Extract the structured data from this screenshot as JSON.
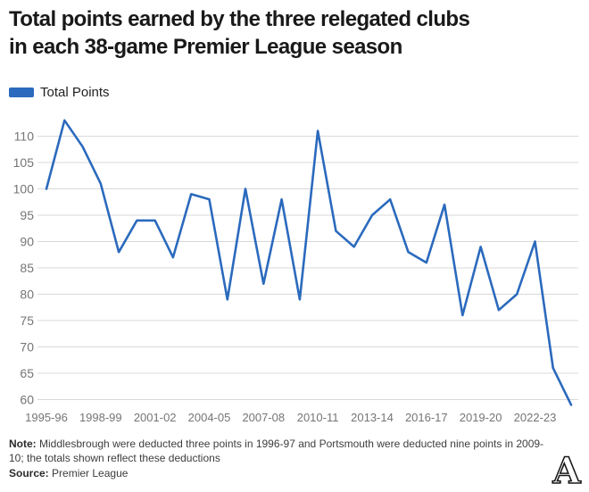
{
  "header": {
    "title_line1": "Total points earned by the three relegated clubs",
    "title_line2": "in each 38-game Premier League season"
  },
  "legend": {
    "label": "Total Points"
  },
  "colors": {
    "accent": "#2b6abd",
    "grid": "#d8d8d8",
    "tick": "#757575",
    "title": "#191919"
  },
  "chart_data": {
    "type": "line",
    "title": "Total points earned by the three relegated clubs in each 38-game Premier League season",
    "legend": [
      "Total Points"
    ],
    "legend_position": "top-left",
    "grid": "horizontal",
    "x": [
      "1995-96",
      "1996-97",
      "1997-98",
      "1998-99",
      "1999-00",
      "2000-01",
      "2001-02",
      "2002-03",
      "2003-04",
      "2004-05",
      "2005-06",
      "2006-07",
      "2007-08",
      "2008-09",
      "2009-10",
      "2010-11",
      "2011-12",
      "2012-13",
      "2013-14",
      "2014-15",
      "2015-16",
      "2016-17",
      "2017-18",
      "2018-19",
      "2019-20",
      "2020-21",
      "2021-22",
      "2022-23",
      "2023-24",
      "2024-25"
    ],
    "values": [
      100,
      113,
      108,
      101,
      88,
      94,
      94,
      87,
      99,
      98,
      79,
      100,
      82,
      98,
      79,
      111,
      92,
      89,
      95,
      98,
      88,
      86,
      97,
      76,
      89,
      77,
      80,
      90,
      66,
      59
    ],
    "ylim": [
      60,
      115
    ],
    "yticks": [
      60,
      65,
      70,
      75,
      80,
      85,
      90,
      95,
      100,
      105,
      110
    ],
    "xticks": [
      "1995-96",
      "1998-99",
      "2001-02",
      "2004-05",
      "2007-08",
      "2010-11",
      "2013-14",
      "2016-17",
      "2019-20",
      "2022-23"
    ],
    "xlabel": "",
    "ylabel": ""
  },
  "footer": {
    "note_label": "Note:",
    "note_text": "Middlesbrough were deducted three points in 1996-97 and Portsmouth were deducted nine points in 2009-10; the totals shown reflect these deductions",
    "source_label": "Source:",
    "source_text": "Premier League",
    "logo": "A"
  }
}
